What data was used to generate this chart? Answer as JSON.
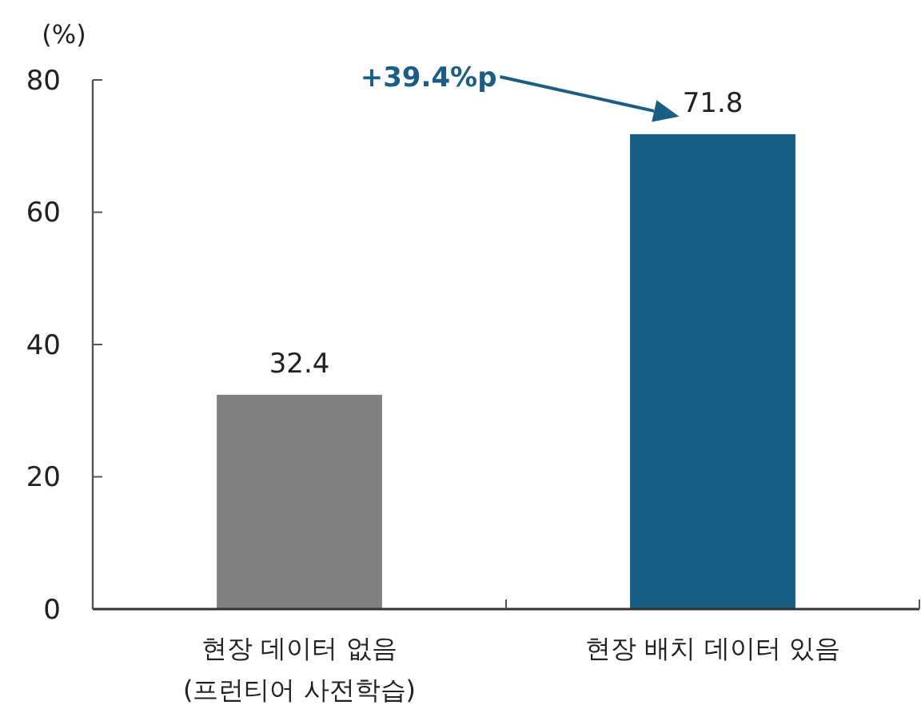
{
  "chart_data": {
    "type": "bar",
    "ylabel": "(%)",
    "categories": [
      "현장 데이터 없음\n(프런티어 사전학습)",
      "현장 배치 데이터 있음"
    ],
    "values": [
      32.4,
      71.8
    ],
    "colors": [
      "#808080",
      "#175e85"
    ],
    "ylim": [
      0,
      80
    ],
    "yticks": [
      0,
      20,
      40,
      60,
      80
    ],
    "grid": false,
    "data_labels": true,
    "annotations": [
      "+39.4%p"
    ]
  }
}
